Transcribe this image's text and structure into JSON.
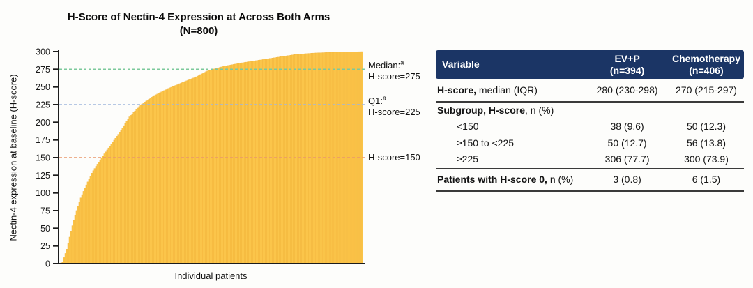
{
  "chart": {
    "title": "H-Score of Nectin-4 Expression at Across Both Arms",
    "subtitle": "(N=800)",
    "ylabel": "Nectin-4 expression at baseline (H-score)",
    "xlabel": "Individual patients"
  },
  "chart_data": {
    "type": "bar",
    "title": "H-Score of Nectin-4 Expression at Across Both Arms",
    "subtitle": "(N=800)",
    "xlabel": "Individual patients",
    "ylabel": "Nectin-4 expression at baseline (H-score)",
    "n_patients": 800,
    "ylim": [
      0,
      300
    ],
    "ytick_step": 25,
    "grid": false,
    "bar_color": "#FBC54A",
    "bar_edge_color": "#F0AF36",
    "reference_lines": [
      {
        "name": "median",
        "value": 275,
        "label_line1": "Median:",
        "label_sup": "a",
        "label_line2": "H-score=275",
        "color": "#7CC99B"
      },
      {
        "name": "q1",
        "value": 225,
        "label_line1": "Q1:",
        "label_sup": "a",
        "label_line2": "H-score=225",
        "color": "#9FB6DC"
      },
      {
        "name": "cutoff-150",
        "value": 150,
        "label_line1": null,
        "label_sup": null,
        "label_line2": "H-score=150",
        "color": "#E9976B"
      }
    ],
    "quantile_profile": {
      "description": "Patients sorted ascending by baseline H-score: fraction of patients (x) vs H-score (y), read from figure",
      "points": [
        [
          0.0,
          0
        ],
        [
          0.011,
          2
        ],
        [
          0.025,
          20
        ],
        [
          0.04,
          48
        ],
        [
          0.055,
          72
        ],
        [
          0.07,
          92
        ],
        [
          0.09,
          112
        ],
        [
          0.11,
          130
        ],
        [
          0.14,
          150
        ],
        [
          0.17,
          168
        ],
        [
          0.2,
          186
        ],
        [
          0.23,
          207
        ],
        [
          0.27,
          225
        ],
        [
          0.31,
          237
        ],
        [
          0.36,
          248
        ],
        [
          0.41,
          257
        ],
        [
          0.45,
          264
        ],
        [
          0.49,
          273
        ],
        [
          0.54,
          279
        ],
        [
          0.6,
          284
        ],
        [
          0.66,
          288
        ],
        [
          0.72,
          292
        ],
        [
          0.78,
          296
        ],
        [
          0.84,
          298
        ],
        [
          0.9,
          299
        ],
        [
          1.0,
          300
        ]
      ]
    }
  },
  "table": {
    "header": {
      "variable": "Variable",
      "ev_line1": "EV+P",
      "ev_line2": "(n=394)",
      "chemo_line1": "Chemotherapy",
      "chemo_line2": "(n=406)",
      "bg_color": "#1B3565"
    },
    "rows": [
      {
        "id": "hscore-median",
        "bold": "H-score,",
        "rest": " median (IQR)",
        "ev": "280 (230-298)",
        "chemo": "270 (215-297)",
        "indent": false,
        "rule_below": true,
        "first": true
      },
      {
        "id": "subgroup-header",
        "bold": "Subgroup, H-score",
        "rest": ", n (%)",
        "ev": "",
        "chemo": "",
        "indent": false,
        "rule_below": false
      },
      {
        "id": "subgroup-lt150",
        "bold": "",
        "rest": "<150",
        "ev": "38 (9.6)",
        "chemo": "50 (12.3)",
        "indent": true,
        "rule_below": false
      },
      {
        "id": "subgroup-150to225",
        "bold": "",
        "rest": "≥150 to <225",
        "ev": "50 (12.7)",
        "chemo": "56 (13.8)",
        "indent": true,
        "rule_below": false
      },
      {
        "id": "subgroup-ge225",
        "bold": "",
        "rest": "≥225",
        "ev": "306 (77.7)",
        "chemo": "300 (73.9)",
        "indent": true,
        "rule_below": true
      },
      {
        "id": "hscore-zero",
        "bold": "Patients with H-score 0,",
        "rest": " n (%)",
        "ev": "3 (0.8)",
        "chemo": "6 (1.5)",
        "indent": false,
        "rule_below": true,
        "last": true
      }
    ]
  }
}
